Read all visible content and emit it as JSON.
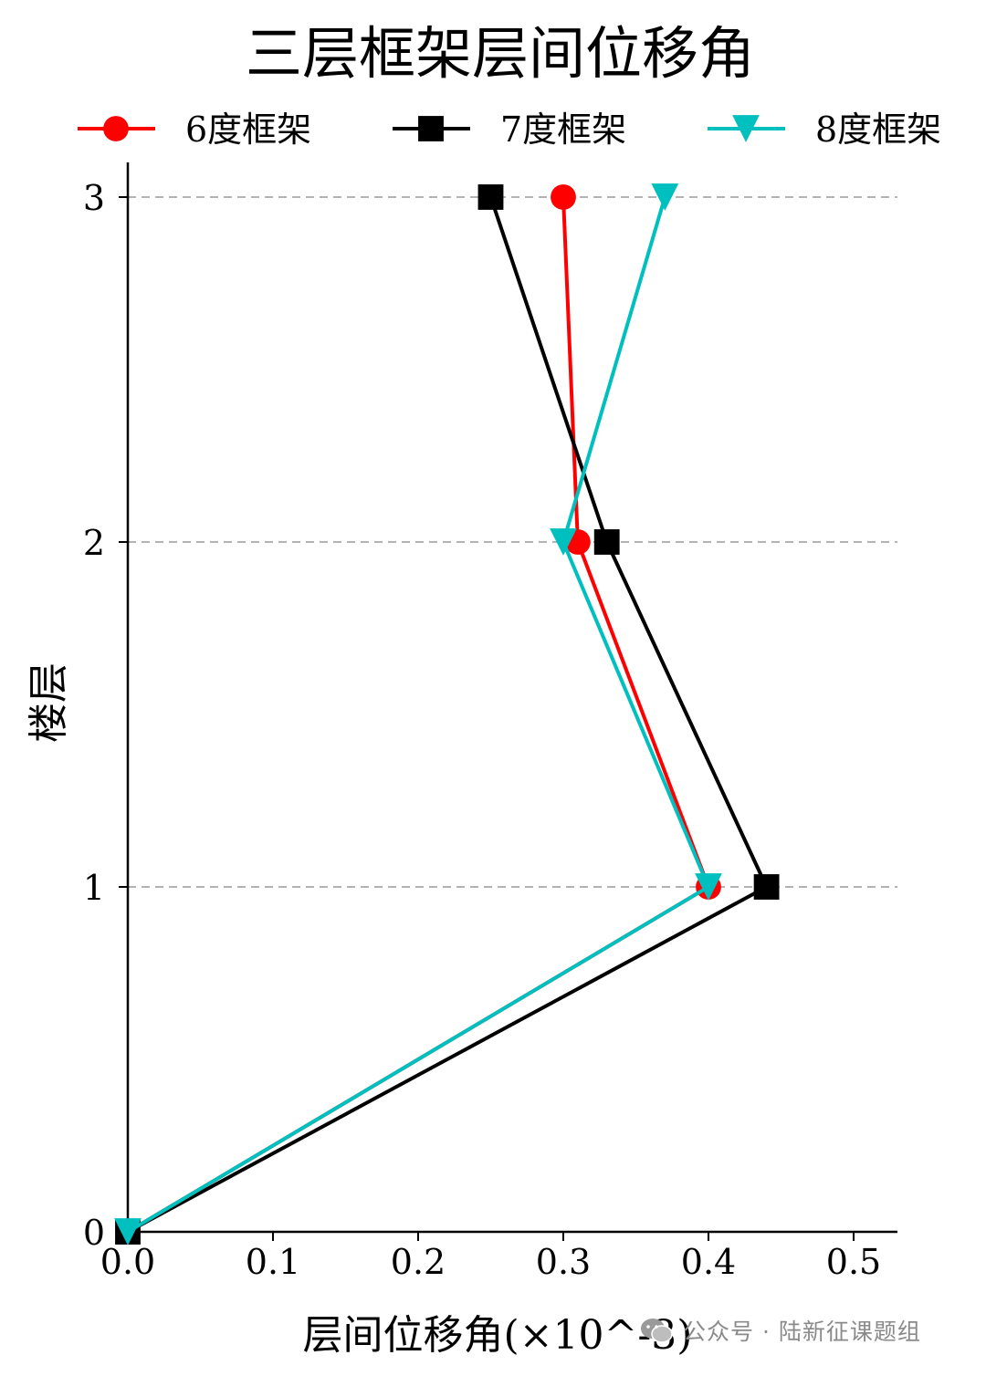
{
  "chart_data": {
    "type": "line",
    "title": "三层框架层间位移角",
    "xlabel": "层间位移角(×10^-3)",
    "ylabel": "楼层",
    "xlim": [
      0.0,
      0.53
    ],
    "ylim": [
      0,
      3.1
    ],
    "xticks": [
      "0.0",
      "0.1",
      "0.2",
      "0.3",
      "0.4",
      "0.5"
    ],
    "yticks": [
      "0",
      "1",
      "2",
      "3"
    ],
    "grid": "horizontal dashed at floors 1-3",
    "legend_position": "top",
    "series": [
      {
        "name": "6度框架",
        "color": "#ff0000",
        "marker": "circle",
        "x": [
          0.0,
          0.4,
          0.31,
          0.3
        ],
        "y": [
          0,
          1,
          2,
          3
        ]
      },
      {
        "name": "7度框架",
        "color": "#000000",
        "marker": "square",
        "x": [
          0.0,
          0.44,
          0.33,
          0.25
        ],
        "y": [
          0,
          1,
          2,
          3
        ]
      },
      {
        "name": "8度框架",
        "color": "#00bfbf",
        "marker": "triangle-down",
        "x": [
          0.0,
          0.4,
          0.3,
          0.37
        ],
        "y": [
          0,
          1,
          2,
          3
        ]
      }
    ]
  },
  "watermark": {
    "text": "公众号 · 陆新征课题组",
    "icon": "wechat-icon"
  }
}
